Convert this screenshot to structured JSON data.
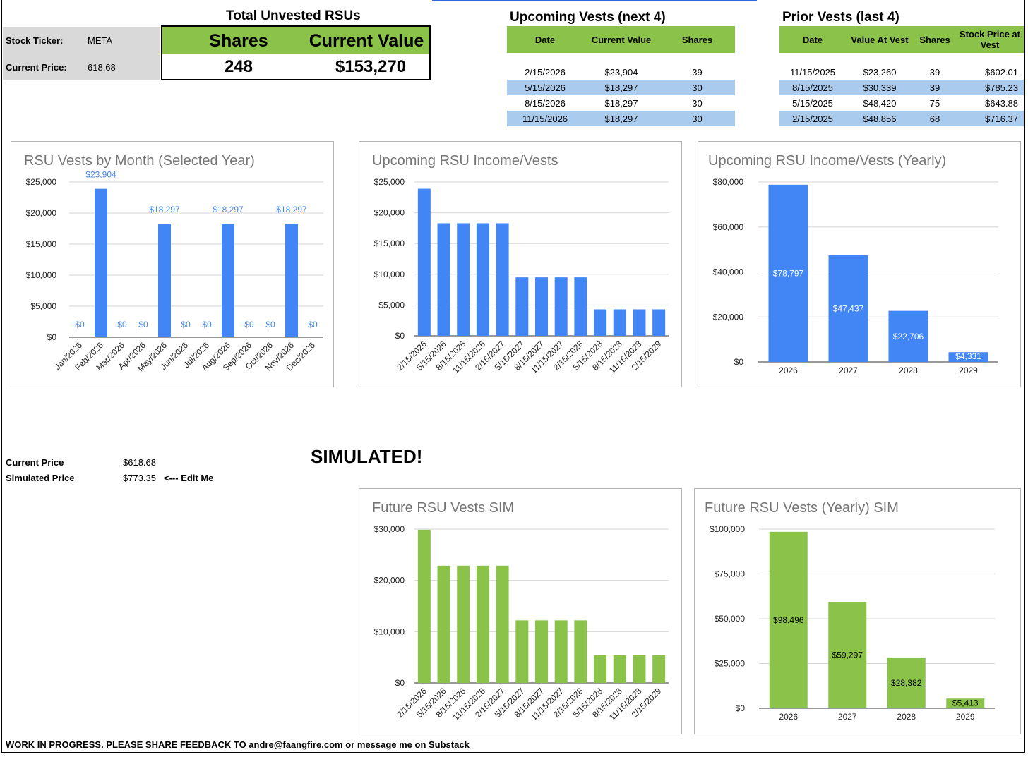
{
  "header": {
    "total_title": "Total Unvested RSUs",
    "shares_label": "Shares",
    "value_label": "Current Value",
    "shares": "248",
    "value": "$153,270"
  },
  "info": {
    "ticker_label": "Stock Ticker:",
    "ticker": "META",
    "price_label": "Current Price:",
    "price": "618.68"
  },
  "upcoming": {
    "title": "Upcoming Vests (next 4)",
    "headers": [
      "Date",
      "Current Value",
      "Shares"
    ],
    "rows": [
      [
        "2/15/2026",
        "$23,904",
        "39"
      ],
      [
        "5/15/2026",
        "$18,297",
        "30"
      ],
      [
        "8/15/2026",
        "$18,297",
        "30"
      ],
      [
        "11/15/2026",
        "$18,297",
        "30"
      ]
    ]
  },
  "prior": {
    "title": "Prior Vests (last 4)",
    "headers": [
      "Date",
      "Value At Vest",
      "Shares",
      "Stock Price at Vest"
    ],
    "rows": [
      [
        "11/15/2025",
        "$23,260",
        "39",
        "$602.01"
      ],
      [
        "8/15/2025",
        "$30,339",
        "39",
        "$785.23"
      ],
      [
        "5/15/2025",
        "$48,420",
        "75",
        "$643.88"
      ],
      [
        "2/15/2025",
        "$48,856",
        "68",
        "$716.37"
      ]
    ]
  },
  "sim": {
    "title": "SIMULATED!",
    "current_label": "Current Price",
    "current_value": "$618.68",
    "sim_label": "Simulated Price",
    "sim_value": "$773.35",
    "edit_hint": "<--- Edit Me"
  },
  "footer": "WORK IN PROGRESS. PLEASE SHARE FEEDBACK TO andre@faangfire.com or message me on Substack",
  "colors": {
    "green": "#8bc34a",
    "blue_bar": "#4285f4",
    "light_blue": "#a9cbed",
    "green_bar": "#8bc34a"
  },
  "chart_data": [
    {
      "type": "bar",
      "title": "RSU Vests by Month (Selected Year)",
      "categories": [
        "Jan/2026",
        "Feb/2026",
        "Mar/2026",
        "Apr/2026",
        "May/2026",
        "Jun/2026",
        "Jul/2026",
        "Aug/2026",
        "Sep/2026",
        "Oct/2026",
        "Nov/2026",
        "Dec/2026"
      ],
      "values": [
        0,
        23904,
        0,
        0,
        18297,
        0,
        0,
        18297,
        0,
        0,
        18297,
        0
      ],
      "value_labels": [
        "$0",
        "$23,904",
        "$0",
        "$0",
        "$18,297",
        "$0",
        "$0",
        "$18,297",
        "$0",
        "$0",
        "$18,297",
        "$0"
      ],
      "yticks": [
        "$0",
        "$5,000",
        "$10,000",
        "$15,000",
        "$20,000",
        "$25,000"
      ],
      "ylim": [
        0,
        25000
      ]
    },
    {
      "type": "bar",
      "title": "Upcoming RSU Income/Vests",
      "categories": [
        "2/15/2026",
        "5/15/2026",
        "8/15/2026",
        "11/15/2026",
        "2/15/2027",
        "5/15/2027",
        "8/15/2027",
        "11/15/2027",
        "2/15/2028",
        "5/15/2028",
        "8/15/2028",
        "11/15/2028",
        "2/15/2029"
      ],
      "values": [
        23904,
        18297,
        18297,
        18297,
        18297,
        9500,
        9500,
        9500,
        9500,
        4300,
        4300,
        4300,
        4300
      ],
      "yticks": [
        "$0",
        "$5,000",
        "$10,000",
        "$15,000",
        "$20,000",
        "$25,000"
      ],
      "ylim": [
        0,
        25000
      ]
    },
    {
      "type": "bar",
      "title": "Upcoming RSU Income/Vests (Yearly)",
      "categories": [
        "2026",
        "2027",
        "2028",
        "2029"
      ],
      "values": [
        78797,
        47437,
        22706,
        4331
      ],
      "value_labels": [
        "$78,797",
        "$47,437",
        "$22,706",
        "$4,331"
      ],
      "yticks": [
        "$0",
        "$20,000",
        "$40,000",
        "$60,000",
        "$80,000"
      ],
      "ylim": [
        0,
        80000
      ]
    },
    {
      "type": "bar",
      "title": "Future RSU Vests SIM",
      "categories": [
        "2/15/2026",
        "5/15/2026",
        "8/15/2026",
        "11/15/2026",
        "2/15/2027",
        "5/15/2027",
        "8/15/2027",
        "11/15/2027",
        "2/15/2028",
        "5/15/2028",
        "8/15/2028",
        "11/15/2028",
        "2/15/2029"
      ],
      "values": [
        29880,
        22871,
        22871,
        22871,
        22871,
        12200,
        12200,
        12200,
        12200,
        5400,
        5400,
        5400,
        5400
      ],
      "yticks": [
        "$0",
        "$10,000",
        "$20,000",
        "$30,000"
      ],
      "ylim": [
        0,
        30000
      ]
    },
    {
      "type": "bar",
      "title": "Future RSU Vests (Yearly) SIM",
      "categories": [
        "2026",
        "2027",
        "2028",
        "2029"
      ],
      "values": [
        98496,
        59297,
        28382,
        5413
      ],
      "value_labels": [
        "$98,496",
        "$59,297",
        "$28,382",
        "$5,413"
      ],
      "yticks": [
        "$0",
        "$25,000",
        "$50,000",
        "$75,000",
        "$100,000"
      ],
      "ylim": [
        0,
        100000
      ]
    }
  ]
}
